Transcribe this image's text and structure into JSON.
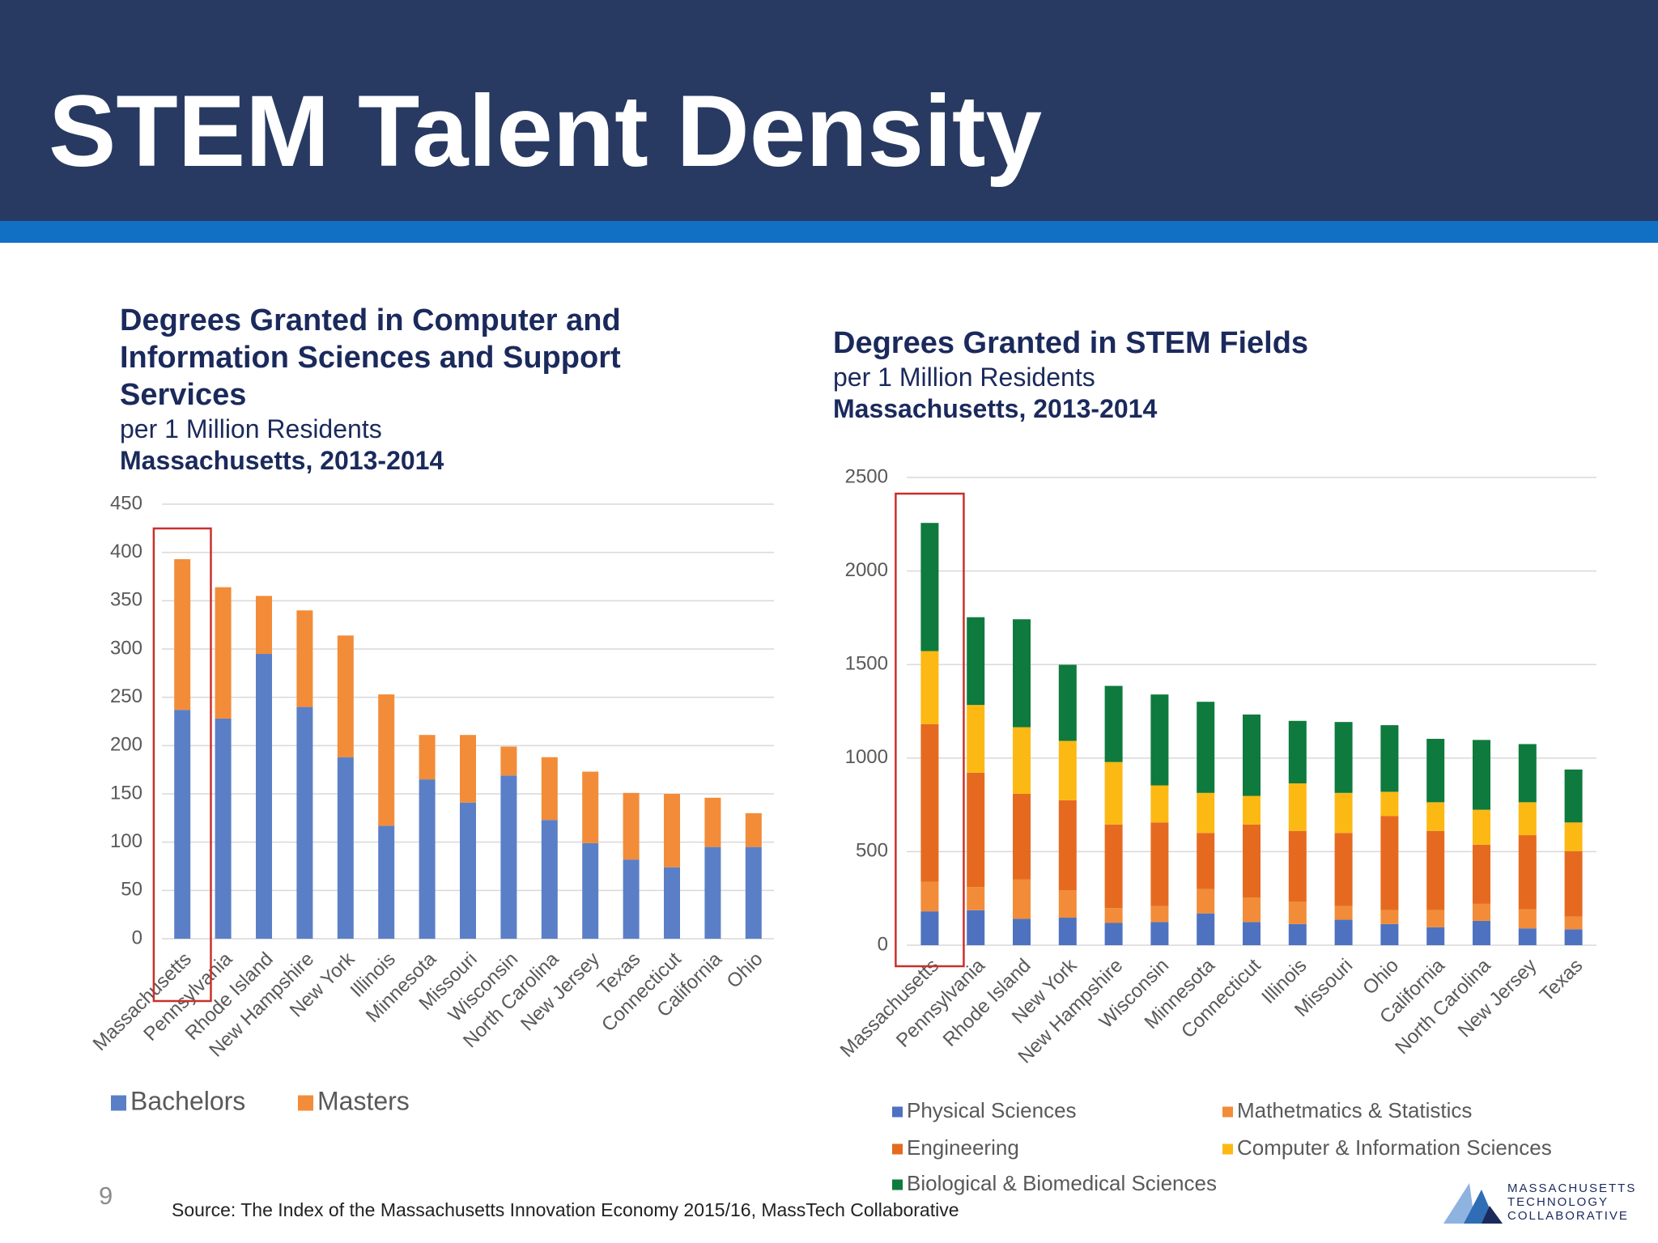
{
  "slide": {
    "title": "STEM Talent Density",
    "page_number": "9",
    "source": "Source: The Index of the Massachusetts Innovation Economy 2015/16, MassTech Collaborative",
    "logo": [
      "MASSACHUSETTS",
      "TECHNOLOGY",
      "COLLABORATIVE"
    ]
  },
  "chart_data": [
    {
      "type": "stacked_bar",
      "title": "Degrees Granted in Computer and Information Sciences and Support Services",
      "subtitle": "per 1 Million Residents",
      "caption": "Massachusetts, 2013-2014",
      "categories": [
        "Massachusetts",
        "Pennsylvania",
        "Rhode Island",
        "New Hampshire",
        "New York",
        "Illinois",
        "Minnesota",
        "Missouri",
        "Wisconsin",
        "North Carolina",
        "New Jersey",
        "Texas",
        "Connecticut",
        "California",
        "Ohio"
      ],
      "series": [
        {
          "name": "Bachelors",
          "color": "#5b7fc6",
          "values": [
            237,
            228,
            295,
            240,
            188,
            117,
            165,
            141,
            169,
            123,
            99,
            82,
            74,
            95,
            95
          ]
        },
        {
          "name": "Masters",
          "color": "#f28c38",
          "values": [
            156,
            136,
            60,
            100,
            126,
            136,
            46,
            70,
            30,
            65,
            74,
            69,
            76,
            51,
            35
          ]
        }
      ],
      "ylim": [
        0,
        450
      ],
      "yticks": [
        0,
        50,
        100,
        150,
        200,
        250,
        300,
        350,
        400,
        450
      ],
      "grid": true,
      "legend": "bottom-left",
      "highlight": {
        "category": 0,
        "color": "#c9302c"
      }
    },
    {
      "type": "stacked_bar",
      "title": "Degrees Granted in STEM Fields",
      "subtitle": "per 1 Million Residents",
      "caption": "Massachusetts, 2013-2014",
      "categories": [
        "Massachusetts",
        "Pennsylvania",
        "Rhode Island",
        "New York",
        "New Hampshire",
        "Wisconsin",
        "Minnesota",
        "Connecticut",
        "Illinois",
        "Missouri",
        "Ohio",
        "California",
        "North Carolina",
        "New Jersey",
        "Texas"
      ],
      "series": [
        {
          "name": "Physical Sciences",
          "color": "#4e72bf",
          "values": [
            181,
            187,
            141,
            147,
            119,
            124,
            170,
            124,
            113,
            136,
            113,
            96,
            130,
            90,
            85
          ]
        },
        {
          "name": "Mathetmatics & Statistics",
          "color": "#f28c38",
          "values": [
            158,
            124,
            210,
            147,
            79,
            85,
            130,
            131,
            119,
            73,
            74,
            91,
            91,
            102,
            68
          ]
        },
        {
          "name": "Engineering",
          "color": "#e56a20",
          "values": [
            843,
            611,
            458,
            481,
            447,
            447,
            300,
            390,
            379,
            391,
            503,
            424,
            316,
            396,
            350
          ]
        },
        {
          "name": "Computer & Information Sciences",
          "color": "#fdb913",
          "values": [
            390,
            362,
            356,
            317,
            334,
            198,
            214,
            153,
            254,
            214,
            130,
            153,
            187,
            176,
            153
          ]
        },
        {
          "name": "Biological & Biomedical Sciences",
          "color": "#0e7a3d",
          "values": [
            685,
            469,
            577,
            407,
            407,
            486,
            487,
            435,
            334,
            379,
            356,
            339,
            373,
            311,
            283
          ]
        }
      ],
      "ylim": [
        0,
        2500
      ],
      "yticks": [
        0,
        500,
        1000,
        1500,
        2000,
        2500
      ],
      "grid": true,
      "legend": "bottom",
      "highlight": {
        "category": 0,
        "color": "#c9302c"
      }
    }
  ]
}
